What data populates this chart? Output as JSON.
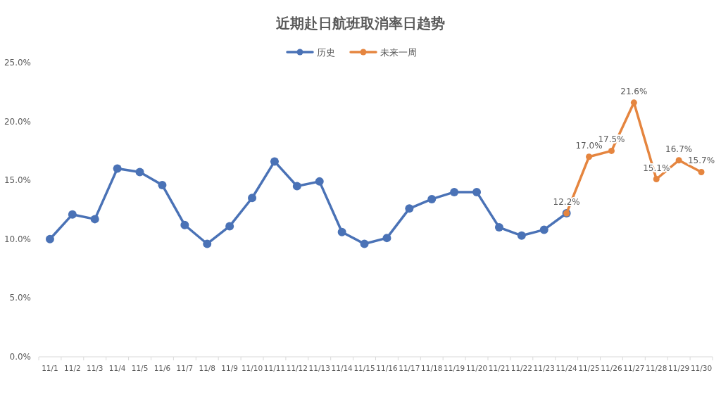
{
  "chart_data": {
    "type": "line",
    "title": "近期赴日航班取消率日趋势",
    "legend": "top",
    "marker": "circle",
    "line_style": "solid",
    "categories": [
      "11/1",
      "11/2",
      "11/3",
      "11/4",
      "11/5",
      "11/6",
      "11/7",
      "11/8",
      "11/9",
      "11/10",
      "11/11",
      "11/12",
      "11/13",
      "11/14",
      "11/15",
      "11/16",
      "11/17",
      "11/18",
      "11/19",
      "11/20",
      "11/21",
      "11/22",
      "11/23",
      "11/24",
      "11/25",
      "11/26",
      "11/27",
      "11/28",
      "11/29",
      "11/30"
    ],
    "ylim": [
      0,
      25
    ],
    "yticks": [
      {
        "value": 0,
        "label": "0.0%"
      },
      {
        "value": 5,
        "label": "5.0%"
      },
      {
        "value": 10,
        "label": "10.0%"
      },
      {
        "value": 15,
        "label": "15.0%"
      },
      {
        "value": 20,
        "label": "20.0%"
      },
      {
        "value": 25,
        "label": "25.0%"
      }
    ],
    "series": [
      {
        "name": "历史",
        "color": "#4a72b6",
        "values": [
          10.0,
          12.1,
          11.7,
          16.0,
          15.7,
          14.6,
          11.2,
          9.6,
          11.1,
          13.5,
          16.6,
          14.5,
          14.9,
          10.6,
          9.6,
          10.1,
          12.6,
          13.4,
          14.0,
          14.0,
          11.0,
          10.3,
          10.8,
          12.2,
          null,
          null,
          null,
          null,
          null,
          null
        ]
      },
      {
        "name": "未来一周",
        "color": "#e5853f",
        "values": [
          null,
          null,
          null,
          null,
          null,
          null,
          null,
          null,
          null,
          null,
          null,
          null,
          null,
          null,
          null,
          null,
          null,
          null,
          null,
          null,
          null,
          null,
          null,
          12.2,
          17.0,
          17.5,
          21.6,
          15.1,
          16.7,
          15.7
        ],
        "value_labels": [
          null,
          null,
          null,
          null,
          null,
          null,
          null,
          null,
          null,
          null,
          null,
          null,
          null,
          null,
          null,
          null,
          null,
          null,
          null,
          null,
          null,
          null,
          null,
          "12.2%",
          "17.0%",
          "17.5%",
          "21.6%",
          "15.1%",
          "16.7%",
          "15.7%"
        ]
      }
    ]
  }
}
